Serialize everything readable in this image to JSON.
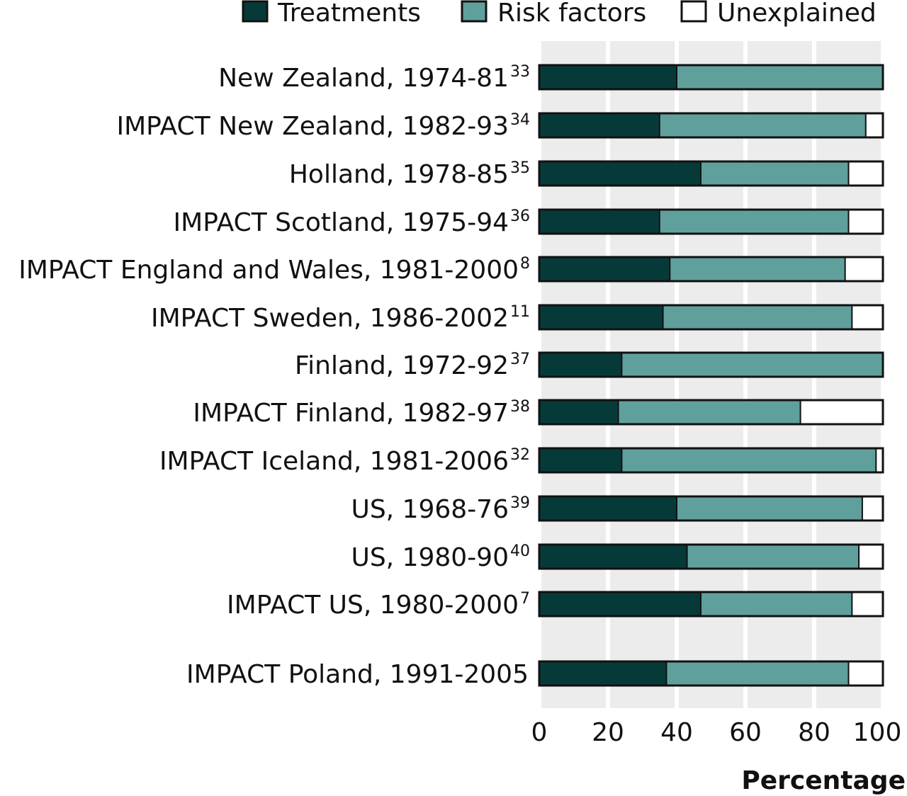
{
  "chart_data": {
    "type": "bar",
    "orientation": "horizontal",
    "stacked": true,
    "xlabel": "Percentage",
    "xlim": [
      0,
      100
    ],
    "xticks": [
      "0",
      "20",
      "40",
      "60",
      "80",
      "100"
    ],
    "grid": true,
    "legend_position": "top",
    "colors": {
      "treatments": "#063a38",
      "risk_factors": "#5fa09c",
      "unexplained": "#ffffff",
      "grid_band": "#ececec",
      "outline": "#111111"
    },
    "legend": [
      {
        "key": "treatments",
        "label": "Treatments"
      },
      {
        "key": "risk_factors",
        "label": "Risk factors"
      },
      {
        "key": "unexplained",
        "label": "Unexplained"
      }
    ],
    "categories": [
      {
        "label": "New Zealand, 1974-81",
        "ref": "33"
      },
      {
        "label": "IMPACT New Zealand, 1982-93",
        "ref": "34"
      },
      {
        "label": "Holland, 1978-85",
        "ref": "35"
      },
      {
        "label": "IMPACT Scotland, 1975-94",
        "ref": "36"
      },
      {
        "label": "IMPACT England and Wales, 1981-2000",
        "ref": "8"
      },
      {
        "label": "IMPACT Sweden, 1986-2002",
        "ref": "11"
      },
      {
        "label": "Finland, 1972-92",
        "ref": "37"
      },
      {
        "label": "IMPACT Finland, 1982-97",
        "ref": "38"
      },
      {
        "label": "IMPACT Iceland, 1981-2006",
        "ref": "32"
      },
      {
        "label": "US, 1968-76",
        "ref": "39"
      },
      {
        "label": "US, 1980-90",
        "ref": "40"
      },
      {
        "label": "IMPACT US, 1980-2000",
        "ref": "7"
      },
      {
        "label": "IMPACT Poland, 1991-2005",
        "ref": ""
      }
    ],
    "series": [
      {
        "name": "Treatments",
        "key": "treatments",
        "values": [
          40,
          35,
          47,
          35,
          38,
          36,
          24,
          23,
          24,
          40,
          43,
          47,
          37
        ]
      },
      {
        "name": "Risk factors",
        "key": "risk_factors",
        "values": [
          60,
          60,
          43,
          55,
          51,
          55,
          76,
          53,
          74,
          54,
          50,
          44,
          53
        ]
      },
      {
        "name": "Unexplained",
        "key": "unexplained",
        "values": [
          0,
          5,
          10,
          10,
          11,
          9,
          0,
          24,
          2,
          6,
          7,
          9,
          10
        ]
      }
    ]
  }
}
